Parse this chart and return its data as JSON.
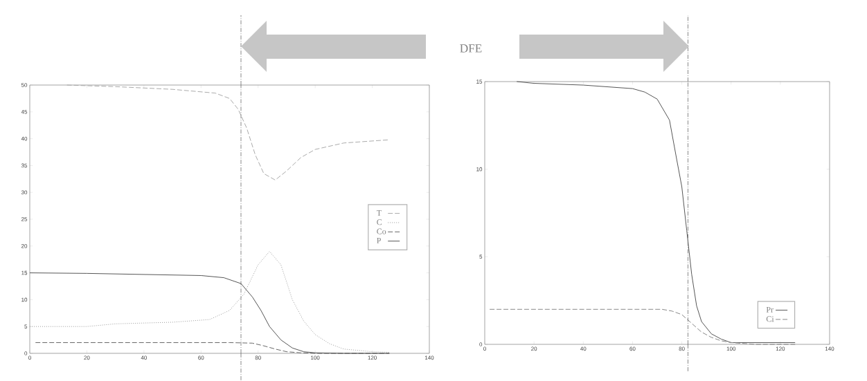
{
  "chart_data": [
    {
      "type": "line",
      "annotations": [
        "DFE"
      ],
      "xlim": [
        0,
        140
      ],
      "ylim": [
        0,
        50
      ],
      "xticks": [
        0,
        20,
        40,
        60,
        80,
        100,
        120,
        140
      ],
      "yticks": [
        0,
        5,
        10,
        15,
        20,
        25,
        30,
        35,
        40,
        45,
        50
      ],
      "legend": "right",
      "grid": false,
      "ref_lines": [
        {
          "axis": "x",
          "value": 74,
          "color": "#555555",
          "line_style": "dashdot"
        }
      ],
      "series": [
        {
          "name": "T",
          "color": "#aaaaaa",
          "line_style": "dashed",
          "x": [
            13,
            30,
            50,
            65,
            70,
            73,
            76,
            79,
            82,
            86,
            90,
            95,
            100,
            110,
            126
          ],
          "values": [
            50,
            49.7,
            49.2,
            48.5,
            47.5,
            45.5,
            42,
            37,
            33.5,
            32.3,
            34,
            36.5,
            38,
            39.2,
            39.8
          ]
        },
        {
          "name": "C",
          "color": "#999999",
          "line_style": "dotted",
          "x": [
            0,
            20,
            30,
            50,
            63,
            70,
            75,
            80,
            84,
            88,
            92,
            96,
            100,
            105,
            110,
            120,
            126
          ],
          "values": [
            5,
            5,
            5.5,
            5.8,
            6.3,
            8,
            11,
            16.5,
            19,
            16.5,
            10,
            6,
            3.5,
            1.8,
            0.8,
            0.3,
            0.2
          ]
        },
        {
          "name": "Co",
          "color": "#666666",
          "line_style": "dashed",
          "x": [
            2,
            20,
            40,
            60,
            70,
            78,
            82,
            86,
            90,
            95,
            100,
            126
          ],
          "values": [
            2,
            2,
            2,
            2,
            2,
            1.9,
            1.4,
            0.8,
            0.3,
            0.1,
            0,
            0
          ]
        },
        {
          "name": "P",
          "color": "#555555",
          "line_style": "solid",
          "x": [
            0,
            20,
            40,
            60,
            68,
            74,
            78,
            81,
            84,
            88,
            92,
            96,
            100,
            110,
            126
          ],
          "values": [
            15,
            14.9,
            14.7,
            14.5,
            14.1,
            13,
            10.5,
            8,
            5,
            2.5,
            1,
            0.3,
            0.1,
            0,
            0
          ]
        }
      ]
    },
    {
      "type": "line",
      "xlim": [
        0,
        140
      ],
      "ylim": [
        0,
        15
      ],
      "xticks": [
        0,
        20,
        40,
        60,
        80,
        100,
        120,
        140
      ],
      "yticks": [
        0,
        5,
        10,
        15
      ],
      "legend": "bottom right",
      "grid": false,
      "ref_lines": [
        {
          "axis": "x",
          "value": 82.5,
          "color": "#555555",
          "line_style": "dashdot"
        }
      ],
      "series": [
        {
          "name": "Pr",
          "color": "#555555",
          "line_style": "solid",
          "x": [
            13,
            20,
            40,
            60,
            65,
            70,
            75,
            78,
            80,
            82,
            84,
            86,
            88,
            92,
            96,
            100,
            110,
            126
          ],
          "values": [
            15,
            14.9,
            14.8,
            14.6,
            14.4,
            14,
            12.8,
            10.5,
            9,
            6.5,
            4,
            2.2,
            1.3,
            0.6,
            0.3,
            0.1,
            0.1,
            0.1
          ]
        },
        {
          "name": "Ci",
          "color": "#888888",
          "line_style": "dashed",
          "x": [
            2,
            40,
            60,
            72,
            76,
            80,
            84,
            88,
            92,
            96,
            100,
            110,
            126
          ],
          "values": [
            2,
            2,
            2,
            2,
            1.9,
            1.7,
            1.2,
            0.7,
            0.4,
            0.2,
            0.1,
            0,
            0
          ]
        }
      ]
    }
  ]
}
